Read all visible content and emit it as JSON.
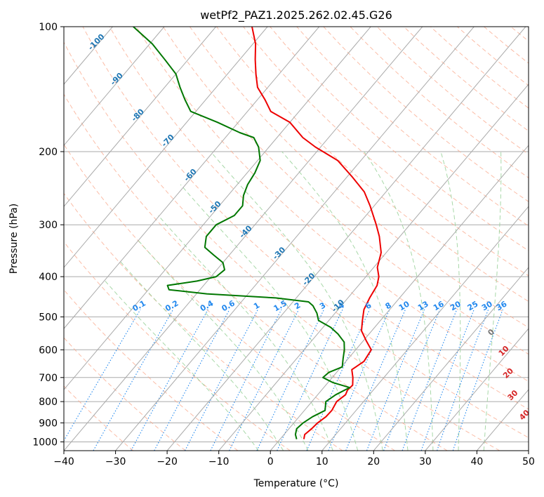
{
  "chart_data": {
    "type": "skew-t",
    "title": "wetPf2_PAZ1.2025.262.02.45.G26",
    "xlabel": "Temperature (°C)",
    "ylabel": "Pressure (hPa)",
    "xlim": [
      -40,
      50
    ],
    "ylim": [
      1050,
      100
    ],
    "x_ticks": [
      -40,
      -30,
      -20,
      -10,
      0,
      10,
      20,
      30,
      40,
      50
    ],
    "x_tick_labels": [
      "−40",
      "−30",
      "−20",
      "−10",
      "0",
      "10",
      "20",
      "30",
      "40",
      "50"
    ],
    "y_ticks": [
      100,
      200,
      300,
      400,
      500,
      600,
      700,
      800,
      900,
      1000
    ],
    "y_tick_labels": [
      "100",
      "200",
      "300",
      "400",
      "500",
      "600",
      "700",
      "800",
      "900",
      "1000"
    ],
    "skew_deg_per_decade": 68,
    "colors": {
      "temperature": "#ee0000",
      "dewpoint": "#007700",
      "isotherm": "#aaaaaa",
      "dry_adiabat": "#f9a78a",
      "moist_adiabat": "#9fd49f",
      "mixing_ratio": "#2288ee",
      "label_blue": "#1f77b4",
      "label_red": "#d62728",
      "label_gray": "#777777"
    },
    "series": [
      {
        "name": "Temperature",
        "pressure": [
          985,
          960,
          930,
          900,
          870,
          840,
          800,
          770,
          750,
          730,
          700,
          670,
          640,
          600,
          570,
          540,
          510,
          480,
          450,
          420,
          400,
          380,
          350,
          320,
          300,
          270,
          250,
          230,
          210,
          195,
          185,
          170,
          160,
          150,
          140,
          130,
          120,
          110,
          100
        ],
        "temperature": [
          4.6,
          4.0,
          4.4,
          4.6,
          5.2,
          5.3,
          4.8,
          5.4,
          5.0,
          5.2,
          4.0,
          2.5,
          3.5,
          3.0,
          0.5,
          -2.0,
          -3.5,
          -5.0,
          -5.8,
          -6.4,
          -7.5,
          -9.3,
          -11.0,
          -14.0,
          -16.5,
          -20.8,
          -24.2,
          -29.0,
          -34.5,
          -41.0,
          -45.0,
          -50.0,
          -55.5,
          -58.5,
          -62.0,
          -64.5,
          -67.0,
          -69.5,
          -73.0
        ]
      },
      {
        "name": "Dewpoint",
        "pressure": [
          985,
          960,
          930,
          900,
          870,
          840,
          800,
          770,
          740,
          720,
          700,
          680,
          660,
          630,
          600,
          575,
          550,
          530,
          510,
          490,
          470,
          460,
          450,
          440,
          430,
          420,
          410,
          400,
          385,
          370,
          355,
          340,
          320,
          300,
          285,
          270,
          255,
          240,
          225,
          210,
          195,
          185,
          180,
          170,
          160,
          150,
          140,
          130,
          120,
          110,
          100
        ],
        "dewpoint": [
          3.2,
          2.2,
          1.5,
          1.8,
          2.6,
          4.0,
          2.7,
          3.5,
          5.0,
          1.0,
          -1.8,
          -1.5,
          0.2,
          -1.0,
          -2.2,
          -3.5,
          -6.0,
          -8.5,
          -12.0,
          -13.5,
          -15.5,
          -17.0,
          -24.0,
          -38.0,
          -46.0,
          -47.0,
          -42.0,
          -39.0,
          -38.5,
          -40.0,
          -43.0,
          -46.0,
          -47.5,
          -47.5,
          -45.5,
          -45.5,
          -47.0,
          -48.0,
          -48.5,
          -49.5,
          -52.0,
          -54.5,
          -58.0,
          -64.0,
          -71.0,
          -74.0,
          -77.0,
          -80.0,
          -84.5,
          -89.5,
          -96.0
        ]
      }
    ],
    "isotherm_values": [
      -110,
      -100,
      -90,
      -80,
      -70,
      -60,
      -50,
      -40,
      -30,
      -20,
      -10,
      0,
      10,
      20,
      30,
      40,
      50
    ],
    "isotherm_labels": [
      "-100",
      "-90",
      "-80",
      "-70",
      "-60",
      "-50",
      "-40",
      "-30",
      "-20",
      "-10"
    ],
    "isotherm_label_values": [
      -100,
      -90,
      -80,
      -70,
      -60,
      -50,
      -40,
      -30,
      -20,
      -10
    ],
    "isotherm_label_pressures": [
      110,
      135,
      165,
      190,
      230,
      275,
      315,
      355,
      410,
      475
    ],
    "dry_adiabat_thetas_c": [
      -30,
      -20,
      -10,
      0,
      10,
      20,
      30,
      40,
      50,
      60,
      70,
      80,
      90,
      100,
      110,
      120,
      130,
      140,
      150,
      160,
      170,
      180,
      190,
      200,
      210,
      220
    ],
    "moist_adiabat_start_c": [
      -5,
      0,
      5,
      10,
      15,
      20,
      25,
      30,
      35,
      40
    ],
    "freezing_labels": [
      {
        "text": "0",
        "temp": 24,
        "pressure": 550,
        "color": "label_gray"
      },
      {
        "text": "10",
        "temp": 29.5,
        "pressure": 610,
        "color": "label_red"
      },
      {
        "text": "20",
        "temp": 34.0,
        "pressure": 690,
        "color": "label_red"
      },
      {
        "text": "30",
        "temp": 38.5,
        "pressure": 780,
        "color": "label_red"
      },
      {
        "text": "40",
        "temp": 44.0,
        "pressure": 870,
        "color": "label_red"
      }
    ],
    "mixing_ratio_values": [
      0.1,
      0.2,
      0.4,
      0.6,
      1,
      1.5,
      2,
      3,
      4,
      6,
      8,
      10,
      13,
      16,
      20,
      25,
      30,
      36
    ],
    "mixing_ratio_labels": [
      "0.1",
      "0.2",
      "0.4",
      "0.6",
      "1",
      "1.5",
      "2",
      "3",
      "4",
      "6",
      "8",
      "10",
      "13",
      "16",
      "20",
      "25",
      "30",
      "36"
    ],
    "mixing_ratio_label_pressure": 480
  }
}
